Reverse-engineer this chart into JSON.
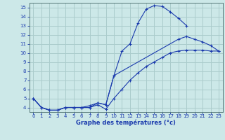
{
  "title": "Graphe des températures (°c)",
  "bg_color": "#cce8e8",
  "grid_color": "#aacccc",
  "line_color": "#1a3aad",
  "xlim": [
    -0.5,
    23.5
  ],
  "ylim": [
    3.5,
    15.5
  ],
  "yticks": [
    4,
    5,
    6,
    7,
    8,
    9,
    10,
    11,
    12,
    13,
    14,
    15
  ],
  "xticks": [
    0,
    1,
    2,
    3,
    4,
    5,
    6,
    7,
    8,
    9,
    10,
    11,
    12,
    13,
    14,
    15,
    16,
    17,
    18,
    19,
    20,
    21,
    22,
    23
  ],
  "hours": [
    0,
    1,
    2,
    3,
    4,
    5,
    6,
    7,
    8,
    9,
    10,
    11,
    12,
    13,
    14,
    15,
    16,
    17,
    18,
    19,
    20,
    21,
    22,
    23
  ],
  "line1": [
    5.0,
    4.0,
    3.7,
    3.7,
    4.0,
    4.0,
    4.0,
    4.0,
    4.3,
    3.8,
    5.0,
    6.0,
    7.0,
    7.8,
    8.5,
    9.0,
    9.5,
    10.0,
    10.2,
    10.3,
    10.3,
    10.3,
    10.2,
    10.2
  ],
  "line2": [
    5.0,
    4.0,
    3.7,
    3.7,
    4.0,
    4.0,
    4.0,
    4.0,
    4.5,
    4.3,
    7.5,
    10.2,
    11.0,
    13.3,
    14.8,
    15.2,
    15.1,
    14.5,
    13.8,
    13.0,
    null,
    null,
    null,
    null
  ],
  "line3": [
    5.0,
    4.0,
    3.7,
    3.7,
    4.0,
    4.0,
    4.0,
    4.2,
    4.5,
    4.3,
    7.5,
    null,
    null,
    null,
    null,
    null,
    null,
    null,
    11.5,
    11.8,
    11.5,
    11.2,
    10.8,
    10.2
  ]
}
